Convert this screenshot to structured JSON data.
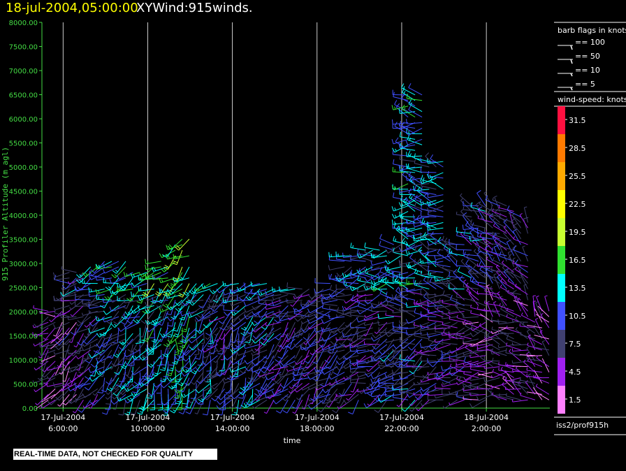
{
  "header": {
    "datetime": "18-jul-2004,05:00:00",
    "title": "XYWind:915winds."
  },
  "footer": {
    "qa_note": "REAL-TIME DATA, NOT CHECKED FOR QUALITY",
    "source": "iss2/prof915h"
  },
  "barb_legend": {
    "title": "barb flags in knots",
    "entries": [
      "== 100",
      "== 50",
      "== 10",
      "== 5"
    ]
  },
  "speed_legend": {
    "title": "wind-speed: knots",
    "labels": [
      "31.5",
      "28.5",
      "25.5",
      "22.5",
      "19.5",
      "16.5",
      "13.5",
      "10.5",
      "7.5",
      "4.5",
      "1.5"
    ],
    "colors": [
      "#ff1040",
      "#ff7a00",
      "#ffaa00",
      "#ffff00",
      "#c8ff30",
      "#30e030",
      "#00ffff",
      "#4050ff",
      "#404070",
      "#a020f0",
      "#ff80ff"
    ]
  },
  "colors": {
    "axis": "#44dd44",
    "gridline": "#ffffff",
    "background": "#000000",
    "title_time": "#ffff00"
  },
  "chart_data": {
    "type": "wind-barb time-height",
    "title": "XYWind:915winds.",
    "xlabel": "time",
    "ylabel": "915 Profiler Altitude (m agl)",
    "ylim": [
      0,
      8000
    ],
    "yticks": [
      "0.00",
      "500.00",
      "1000.00",
      "1500.00",
      "2000.00",
      "2500.00",
      "3000.00",
      "3500.00",
      "4000.00",
      "4500.00",
      "5000.00",
      "5500.00",
      "6000.00",
      "6500.00",
      "7000.00",
      "7500.00",
      "8000.00"
    ],
    "xticks": [
      {
        "date": "17-Jul-2004",
        "time": "6:00:00"
      },
      {
        "date": "17-Jul-2004",
        "time": "10:00:00"
      },
      {
        "date": "17-Jul-2004",
        "time": "14:00:00"
      },
      {
        "date": "17-Jul-2004",
        "time": "18:00:00"
      },
      {
        "date": "17-Jul-2004",
        "time": "22:00:00"
      },
      {
        "date": "18-Jul-2004",
        "time": "2:00:00"
      }
    ],
    "xrange_hours": [
      "17-Jul-2004 05:00",
      "18-Jul-2004 05:00"
    ],
    "grid": "vertical lines at labeled times",
    "wind_speed_range_knots": [
      0,
      33
    ],
    "profiles": [
      {
        "time": "17-Jul-2004 05:00",
        "top_m": 2100,
        "dir_deg": 230,
        "speed_kt": 5
      },
      {
        "time": "17-Jul-2004 06:00",
        "top_m": 2900,
        "dir_deg": 225,
        "speed_kt": 6
      },
      {
        "time": "17-Jul-2004 07:00",
        "top_m": 3050,
        "dir_deg": 220,
        "speed_kt": 9
      },
      {
        "time": "17-Jul-2004 08:00",
        "top_m": 3050,
        "dir_deg": 215,
        "speed_kt": 10
      },
      {
        "time": "17-Jul-2004 09:00",
        "top_m": 2850,
        "dir_deg": 210,
        "speed_kt": 11
      },
      {
        "time": "17-Jul-2004 10:00",
        "top_m": 3050,
        "dir_deg": 205,
        "speed_kt": 12
      },
      {
        "time": "17-Jul-2004 11:00",
        "top_m": 3550,
        "dir_deg": 200,
        "speed_kt": 14
      },
      {
        "time": "17-Jul-2004 12:00",
        "top_m": 2600,
        "dir_deg": 205,
        "speed_kt": 10
      },
      {
        "time": "17-Jul-2004 13:00",
        "top_m": 2600,
        "dir_deg": 210,
        "speed_kt": 9
      },
      {
        "time": "17-Jul-2004 14:00",
        "top_m": 2600,
        "dir_deg": 215,
        "speed_kt": 10
      },
      {
        "time": "17-Jul-2004 15:00",
        "top_m": 2600,
        "dir_deg": 220,
        "speed_kt": 9
      },
      {
        "time": "17-Jul-2004 16:00",
        "top_m": 2550,
        "dir_deg": 225,
        "speed_kt": 8
      },
      {
        "time": "17-Jul-2004 17:00",
        "top_m": 2550,
        "dir_deg": 225,
        "speed_kt": 8
      },
      {
        "time": "17-Jul-2004 18:00",
        "top_m": 2600,
        "dir_deg": 230,
        "speed_kt": 8
      },
      {
        "time": "17-Jul-2004 19:00",
        "top_m": 3200,
        "dir_deg": 235,
        "speed_kt": 8
      },
      {
        "time": "17-Jul-2004 20:00",
        "top_m": 3500,
        "dir_deg": 240,
        "speed_kt": 8
      },
      {
        "time": "17-Jul-2004 21:00",
        "top_m": 3500,
        "dir_deg": 245,
        "speed_kt": 9
      },
      {
        "time": "17-Jul-2004 22:00",
        "top_m": 6600,
        "dir_deg": 250,
        "speed_kt": 9
      },
      {
        "time": "17-Jul-2004 23:00",
        "top_m": 5200,
        "dir_deg": 255,
        "speed_kt": 8
      },
      {
        "time": "18-Jul-2004 00:00",
        "top_m": 3500,
        "dir_deg": 260,
        "speed_kt": 7
      },
      {
        "time": "18-Jul-2004 01:00",
        "top_m": 4200,
        "dir_deg": 270,
        "speed_kt": 6
      },
      {
        "time": "18-Jul-2004 02:00",
        "top_m": 4200,
        "dir_deg": 280,
        "speed_kt": 5
      },
      {
        "time": "18-Jul-2004 03:00",
        "top_m": 4100,
        "dir_deg": 290,
        "speed_kt": 5
      },
      {
        "time": "18-Jul-2004 04:00",
        "top_m": 2100,
        "dir_deg": 300,
        "speed_kt": 4
      }
    ]
  }
}
